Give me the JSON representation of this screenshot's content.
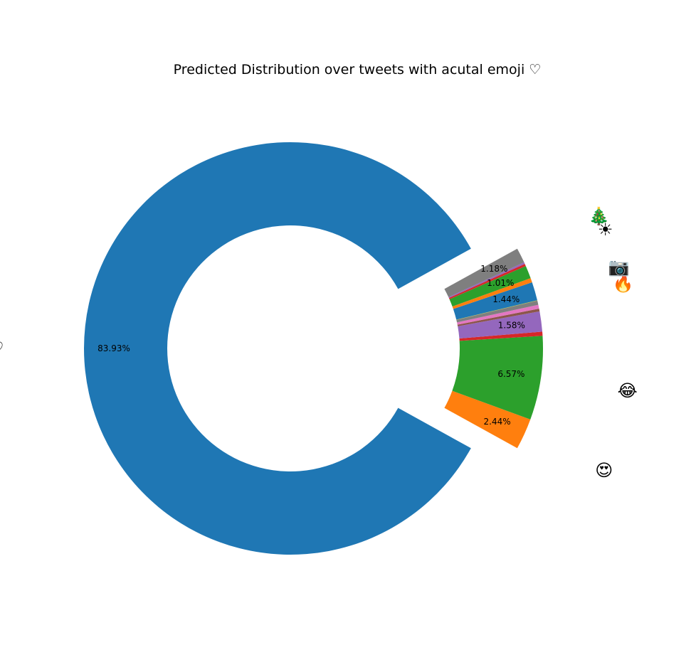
{
  "chart_data": {
    "type": "pie",
    "style": "donut",
    "title": "Predicted Distribution over tweets with acutal emoji ♡",
    "slices": [
      {
        "label": "♡",
        "value": 83.93,
        "pct_label": "83.93%",
        "color": "#1f77b4",
        "exploded": false
      },
      {
        "label": "😍",
        "value": 2.44,
        "pct_label": "2.44%",
        "color": "#ff7f0e",
        "exploded": true
      },
      {
        "label": "😂",
        "value": 6.57,
        "pct_label": "6.57%",
        "color": "#2ca02c",
        "exploded": true
      },
      {
        "label": "",
        "value": 0.32,
        "pct_label": "",
        "color": "#d62728",
        "exploded": true
      },
      {
        "label": "",
        "value": 1.58,
        "pct_label": "1.58%",
        "color": "#9467bd",
        "exploded": true
      },
      {
        "label": "",
        "value": 0.22,
        "pct_label": "",
        "color": "#8c564b",
        "exploded": true
      },
      {
        "label": "",
        "value": 0.3,
        "pct_label": "",
        "color": "#e377c2",
        "exploded": true
      },
      {
        "label": "🔥",
        "value": 0.33,
        "pct_label": "",
        "color": "#7f7f7f",
        "exploded": true
      },
      {
        "label": "",
        "value": 0.03,
        "pct_label": "",
        "color": "#bcbd22",
        "exploded": true
      },
      {
        "label": "📷",
        "value": 1.44,
        "pct_label": "1.44%",
        "color": "#1f77b4",
        "exploded": true
      },
      {
        "label": "",
        "value": 0.34,
        "pct_label": "",
        "color": "#ff7f0e",
        "exploded": true
      },
      {
        "label": "",
        "value": 1.01,
        "pct_label": "1.01%",
        "color": "#2ca02c",
        "exploded": true
      },
      {
        "label": "☀",
        "value": 0.18,
        "pct_label": "",
        "color": "#d62728",
        "exploded": true
      },
      {
        "label": "",
        "value": 0.13,
        "pct_label": "",
        "color": "#9467bd",
        "exploded": true
      },
      {
        "label": "🎄",
        "value": 1.18,
        "pct_label": "1.18%",
        "color": "#7f7f7f",
        "exploded": true
      }
    ],
    "legend": "none",
    "grid": false
  }
}
